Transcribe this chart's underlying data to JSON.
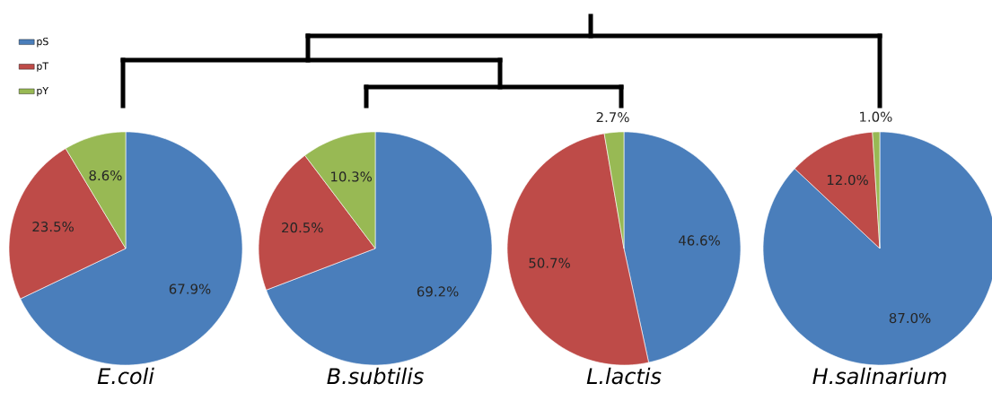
{
  "chart_data": [
    {
      "type": "pie",
      "title": "E.coli",
      "categories": [
        "pS",
        "pT",
        "pY"
      ],
      "values": [
        67.9,
        23.5,
        8.6
      ],
      "value_labels": [
        "67.9%",
        "23.5%",
        "8.6%"
      ],
      "colors": [
        "#4a7ebb",
        "#be4b48",
        "#98b954"
      ],
      "legend": "top left"
    },
    {
      "type": "pie",
      "title": "B.subtilis",
      "categories": [
        null,
        null,
        null
      ],
      "values": [
        69.2,
        20.5,
        10.3
      ],
      "value_labels": [
        "69.2%",
        "20.5%",
        "10.3%"
      ],
      "colors": [
        "#4a7ebb",
        "#be4b48",
        "#98b954"
      ]
    },
    {
      "type": "pie",
      "title": "L.lactis",
      "categories": [
        null,
        null,
        null
      ],
      "values": [
        46.6,
        50.7,
        2.7
      ],
      "value_labels": [
        "46.6%",
        "50.7%",
        "2.7%"
      ],
      "colors": [
        "#4a7ebb",
        "#be4b48",
        "#98b954"
      ]
    },
    {
      "type": "pie",
      "title": "H.salinarium",
      "categories": [
        null,
        null,
        null
      ],
      "values": [
        87.0,
        12.0,
        1.0
      ],
      "value_labels": [
        "87.0%",
        "12.0%",
        "1.0%"
      ],
      "colors": [
        "#4a7ebb",
        "#be4b48",
        "#98b954"
      ]
    }
  ]
}
